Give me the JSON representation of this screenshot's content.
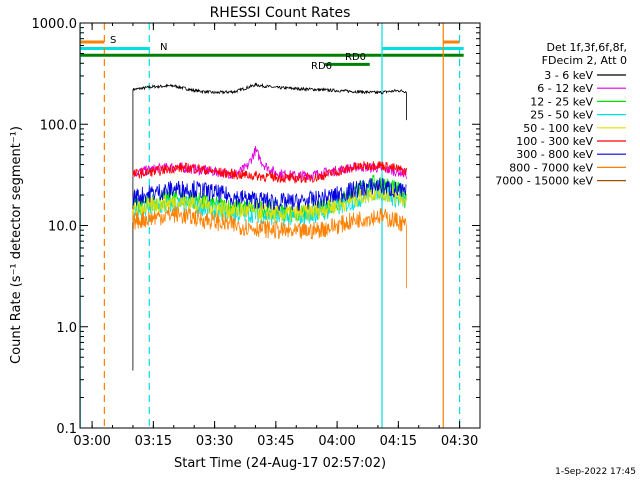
{
  "chart_data": {
    "type": "line",
    "title": "RHESSI Count Rates",
    "xlabel": "Start Time (24-Aug-17 02:57:02)",
    "ylabel": "Count Rate (s⁻¹ detector segment⁻¹)",
    "yscale": "log",
    "ylim": [
      0.1,
      1000
    ],
    "xlim": [
      "02:57:02",
      "04:35:00"
    ],
    "x_ticks": [
      "03:00",
      "03:15",
      "03:30",
      "03:45",
      "04:00",
      "04:15",
      "04:30"
    ],
    "y_ticks": [
      "1000.0",
      "100.0",
      "10.0",
      "1.0",
      "0.1"
    ],
    "grid": false,
    "legend_position": "right",
    "legend_header": [
      "Det 1f,3f,6f,8f,",
      "FDecim 2, Att 0"
    ],
    "series": [
      {
        "name": "3 - 6 keV",
        "color": "#000000",
        "t": [
          "03:10",
          "03:15",
          "03:20",
          "03:25",
          "03:30",
          "03:35",
          "03:40",
          "03:45",
          "03:50",
          "03:55",
          "04:00",
          "04:05",
          "04:10",
          "04:15",
          "04:17"
        ],
        "y": [
          220,
          235,
          240,
          215,
          205,
          210,
          245,
          230,
          225,
          220,
          215,
          210,
          205,
          215,
          210
        ]
      },
      {
        "name": "6 - 12 keV",
        "color": "#e000e0",
        "t": [
          "03:10",
          "03:15",
          "03:20",
          "03:25",
          "03:30",
          "03:35",
          "03:38",
          "03:40",
          "03:42",
          "03:45",
          "03:50",
          "03:55",
          "04:00",
          "04:05",
          "04:10",
          "04:15",
          "04:17"
        ],
        "y": [
          33,
          36,
          38,
          36,
          34,
          32,
          38,
          55,
          40,
          33,
          31,
          32,
          35,
          38,
          37,
          34,
          32
        ]
      },
      {
        "name": "12 - 25 keV",
        "color": "#00e000",
        "t": [
          "03:10",
          "03:15",
          "03:20",
          "03:25",
          "03:30",
          "03:35",
          "03:40",
          "03:45",
          "03:50",
          "03:55",
          "04:00",
          "04:05",
          "04:10",
          "04:15",
          "04:17"
        ],
        "y": [
          16,
          17,
          19,
          18,
          16,
          15,
          15,
          14,
          13,
          14,
          17,
          22,
          27,
          22,
          20
        ]
      },
      {
        "name": "25 - 50 keV",
        "color": "#00e0e0",
        "t": [
          "03:10",
          "03:15",
          "03:20",
          "03:25",
          "03:30",
          "03:35",
          "03:40",
          "03:45",
          "03:50",
          "03:55",
          "04:00",
          "04:05",
          "04:10",
          "04:15",
          "04:17"
        ],
        "y": [
          13,
          15,
          16,
          16,
          14,
          13,
          13,
          12,
          12,
          13,
          15,
          18,
          22,
          18,
          17
        ]
      },
      {
        "name": "50 - 100 keV",
        "color": "#e0e000",
        "t": [
          "03:10",
          "03:15",
          "03:20",
          "03:25",
          "03:30",
          "03:35",
          "03:40",
          "03:45",
          "03:50",
          "03:55",
          "04:00",
          "04:05",
          "04:10",
          "04:15",
          "04:17"
        ],
        "y": [
          14,
          16,
          17,
          17,
          15,
          14,
          14,
          13,
          13,
          14,
          16,
          19,
          22,
          19,
          18
        ]
      },
      {
        "name": "100 - 300 keV",
        "color": "#ff0000",
        "t": [
          "03:10",
          "03:15",
          "03:20",
          "03:25",
          "03:30",
          "03:35",
          "03:40",
          "03:45",
          "03:50",
          "03:55",
          "04:00",
          "04:05",
          "04:10",
          "04:15",
          "04:17"
        ],
        "y": [
          32,
          34,
          37,
          37,
          34,
          32,
          31,
          30,
          29,
          30,
          34,
          38,
          40,
          36,
          34
        ]
      },
      {
        "name": "300 - 800 keV",
        "color": "#0000e0",
        "t": [
          "03:10",
          "03:15",
          "03:20",
          "03:25",
          "03:30",
          "03:35",
          "03:40",
          "03:45",
          "03:50",
          "03:55",
          "04:00",
          "04:05",
          "04:10",
          "04:15",
          "04:17"
        ],
        "y": [
          19,
          21,
          23,
          23,
          21,
          19,
          18,
          17,
          17,
          18,
          20,
          23,
          25,
          22,
          21
        ]
      },
      {
        "name": "800 - 7000 keV",
        "color": "#ff8000",
        "t": [
          "03:10",
          "03:15",
          "03:20",
          "03:25",
          "03:30",
          "03:35",
          "03:40",
          "03:45",
          "03:50",
          "03:55",
          "04:00",
          "04:05",
          "04:10",
          "04:15",
          "04:17"
        ],
        "y": [
          11,
          12,
          13,
          12,
          11,
          10,
          9.5,
          9,
          8.5,
          9,
          10,
          11.5,
          12.5,
          11,
          10
        ]
      },
      {
        "name": "7000 - 15000 keV",
        "color": "#a05000",
        "t": [],
        "y": []
      }
    ],
    "time_bars": [
      {
        "label": "S",
        "color": "#ff8000",
        "segments": [
          [
            "02:57:02",
            "03:03"
          ],
          [
            "04:26",
            "04:30"
          ]
        ],
        "level": 650
      },
      {
        "label": "N",
        "color": "#00e0e0",
        "segments": [
          [
            "02:57:02",
            "03:14"
          ],
          [
            "04:11",
            "04:31"
          ]
        ],
        "level": 560
      },
      {
        "label": "RD0",
        "color": "#008000",
        "segments": [
          [
            "02:57:02",
            "04:31"
          ]
        ],
        "level": 480
      },
      {
        "label": "RD6",
        "color": "#008000",
        "segments": [
          [
            "03:57",
            "04:08"
          ]
        ],
        "level": 390
      }
    ],
    "vertical_markers": [
      {
        "time": "02:57:05",
        "color": "#00e0e0",
        "style": "solid"
      },
      {
        "time": "03:03",
        "color": "#ff8000",
        "style": "dashed"
      },
      {
        "time": "03:14",
        "color": "#00e0e0",
        "style": "dashed"
      },
      {
        "time": "04:11",
        "color": "#00e0e0",
        "style": "solid"
      },
      {
        "time": "04:26",
        "color": "#ff8000",
        "style": "solid"
      },
      {
        "time": "04:30",
        "color": "#00e0e0",
        "style": "dashed"
      }
    ],
    "footer": "1-Sep-2022 17:45"
  }
}
